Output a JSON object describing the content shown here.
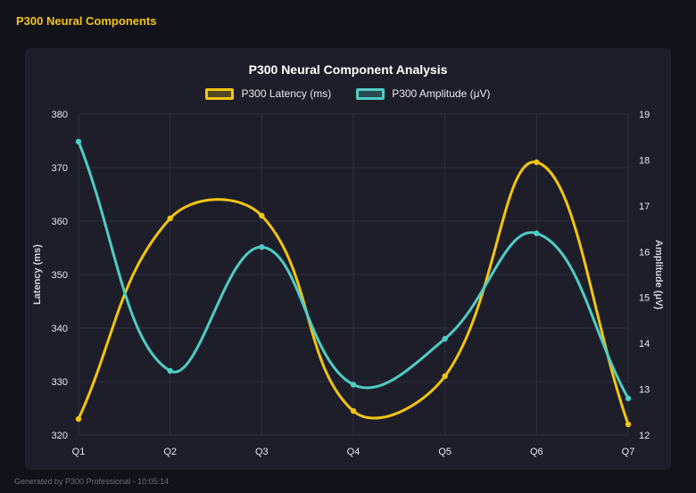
{
  "page": {
    "header_title": "P300 Neural Components",
    "footer": "Generated by P300 Professional - 10:05:14"
  },
  "chart_data": {
    "type": "line",
    "title": "P300 Neural Component Analysis",
    "categories": [
      "Q1",
      "Q2",
      "Q3",
      "Q4",
      "Q5",
      "Q6",
      "Q7"
    ],
    "series": [
      {
        "name": "P300 Latency (ms)",
        "axis": "left",
        "color": "#f2c511",
        "values": [
          323,
          360.5,
          361,
          324.5,
          331,
          371,
          322
        ]
      },
      {
        "name": "P300 Amplitude (μV)",
        "axis": "right",
        "color": "#4ecdc4",
        "values": [
          18.4,
          13.4,
          16.1,
          13.1,
          14.1,
          16.4,
          12.8
        ]
      }
    ],
    "left_axis": {
      "label": "Latency (ms)",
      "min": 320,
      "max": 380,
      "step": 10
    },
    "right_axis": {
      "label": "Amplitude (μV)",
      "min": 12,
      "max": 19,
      "step": 1
    },
    "legend_position": "top",
    "grid": true,
    "line_tension": 0.4,
    "colors": {
      "page_bg": "#12121a",
      "panel_bg": "#1e1e2b",
      "grid": "#2e2e3d",
      "tick_text": "#e6e6ec",
      "axis_title_text": "#d2d2da",
      "chart_title_text": "#ffffff",
      "header_text": "#f2c51a",
      "footer_text": "#6e6e78"
    }
  }
}
